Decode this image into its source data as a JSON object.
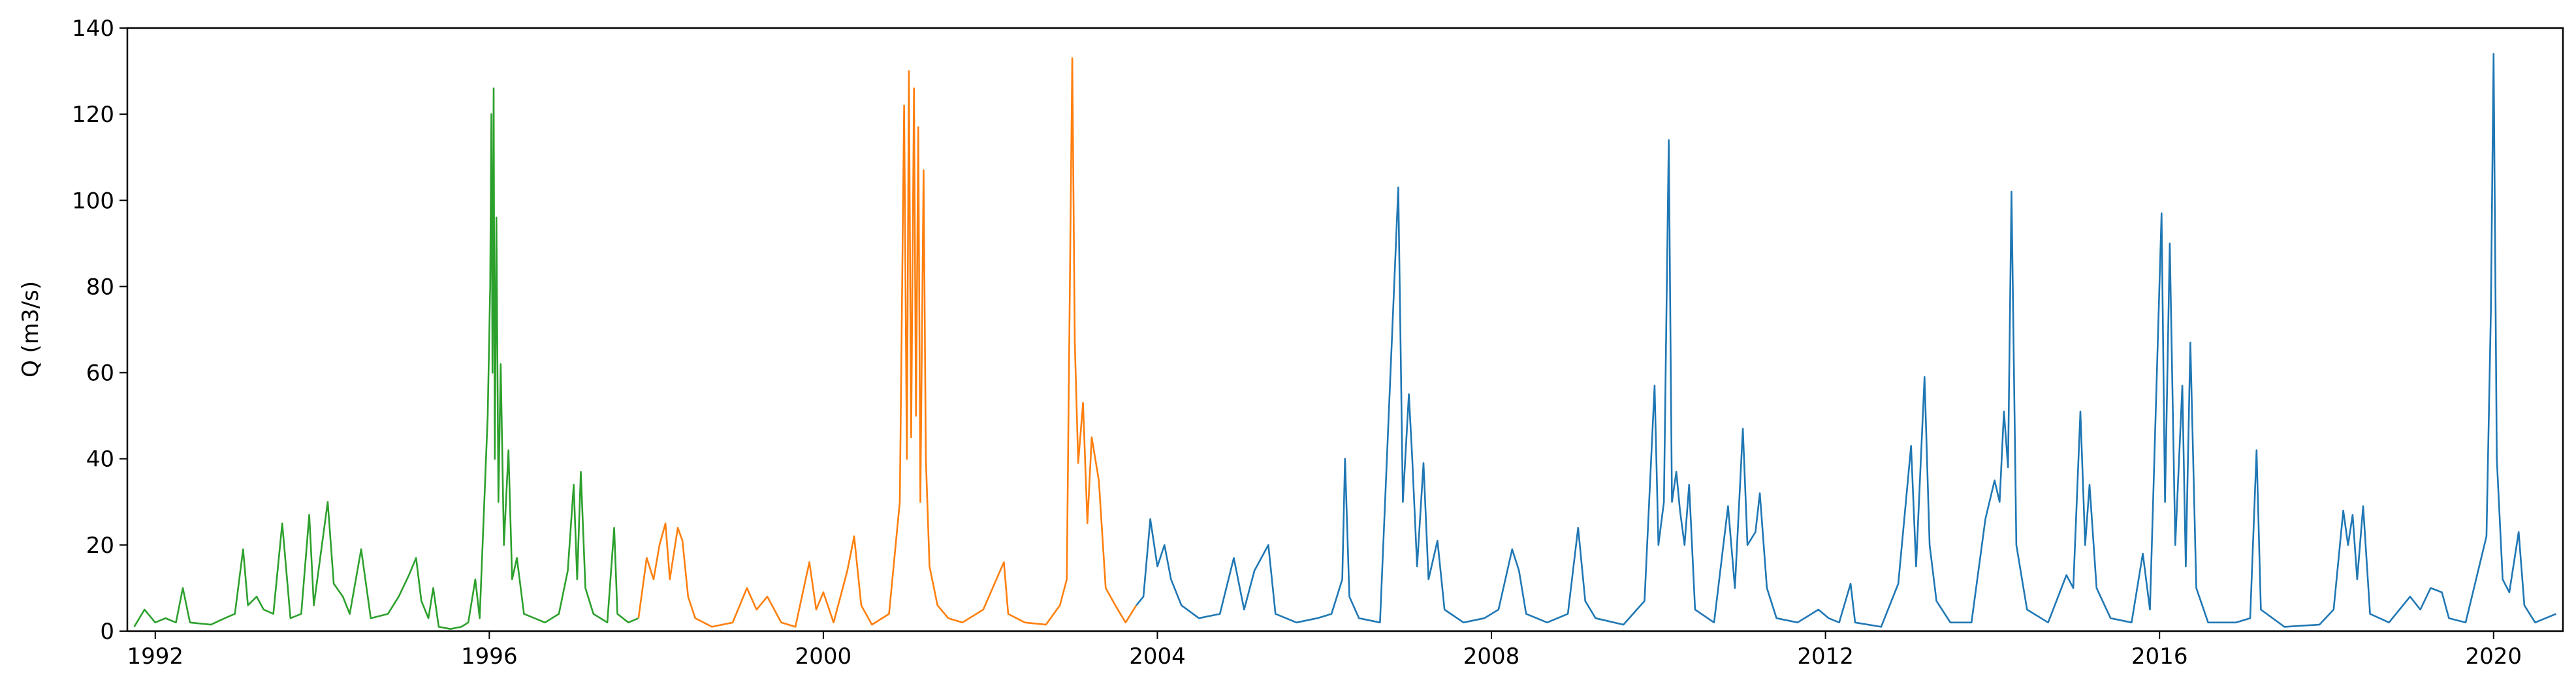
{
  "chart_data": {
    "type": "line",
    "title": "",
    "xlabel": "",
    "ylabel": "Q (m3/s)",
    "xlim": [
      "1991-09-01",
      "2020-10-31"
    ],
    "ylim": [
      0,
      140
    ],
    "x_ticks": [
      "1992",
      "1996",
      "2000",
      "2004",
      "2008",
      "2012",
      "2016",
      "2020"
    ],
    "y_ticks": [
      "0",
      "20",
      "40",
      "60",
      "80",
      "100",
      "120",
      "140"
    ],
    "grid": false,
    "series": [
      {
        "color": "#2ca02c",
        "points": [
          [
            "1991-10-01",
            1
          ],
          [
            "1991-11-15",
            5
          ],
          [
            "1992-01-01",
            2
          ],
          [
            "1992-02-15",
            3
          ],
          [
            "1992-04-01",
            2
          ],
          [
            "1992-05-01",
            10
          ],
          [
            "1992-06-01",
            2
          ],
          [
            "1992-09-01",
            1.5
          ],
          [
            "1992-11-01",
            3
          ],
          [
            "1992-12-15",
            4
          ],
          [
            "1993-01-20",
            19
          ],
          [
            "1993-02-10",
            6
          ],
          [
            "1993-03-20",
            8
          ],
          [
            "1993-04-20",
            5
          ],
          [
            "1993-06-01",
            4
          ],
          [
            "1993-07-10",
            25
          ],
          [
            "1993-08-15",
            3
          ],
          [
            "1993-10-01",
            4
          ],
          [
            "1993-11-05",
            27
          ],
          [
            "1993-11-25",
            6
          ],
          [
            "1994-01-25",
            30
          ],
          [
            "1994-02-20",
            11
          ],
          [
            "1994-04-01",
            8
          ],
          [
            "1994-05-01",
            4
          ],
          [
            "1994-06-20",
            19
          ],
          [
            "1994-08-01",
            3
          ],
          [
            "1994-10-15",
            4
          ],
          [
            "1994-12-01",
            8
          ],
          [
            "1995-01-15",
            13
          ],
          [
            "1995-02-15",
            17
          ],
          [
            "1995-03-10",
            7
          ],
          [
            "1995-04-10",
            3
          ],
          [
            "1995-05-01",
            10
          ],
          [
            "1995-05-25",
            1
          ],
          [
            "1995-07-15",
            0.5
          ],
          [
            "1995-09-01",
            1
          ],
          [
            "1995-10-01",
            2
          ],
          [
            "1995-11-01",
            12
          ],
          [
            "1995-11-20",
            3
          ],
          [
            "1995-12-25",
            50
          ],
          [
            "1996-01-05",
            80
          ],
          [
            "1996-01-10",
            120
          ],
          [
            "1996-01-15",
            60
          ],
          [
            "1996-01-20",
            126
          ],
          [
            "1996-01-25",
            40
          ],
          [
            "1996-02-01",
            96
          ],
          [
            "1996-02-10",
            30
          ],
          [
            "1996-02-20",
            62
          ],
          [
            "1996-03-05",
            20
          ],
          [
            "1996-03-25",
            42
          ],
          [
            "1996-04-10",
            12
          ],
          [
            "1996-05-01",
            17
          ],
          [
            "1996-06-01",
            4
          ],
          [
            "1996-09-01",
            2
          ],
          [
            "1996-11-01",
            4
          ],
          [
            "1996-12-10",
            14
          ],
          [
            "1997-01-05",
            34
          ],
          [
            "1997-01-20",
            12
          ],
          [
            "1997-02-05",
            37
          ],
          [
            "1997-02-25",
            10
          ],
          [
            "1997-04-01",
            4
          ],
          [
            "1997-06-01",
            2
          ],
          [
            "1997-07-01",
            24
          ],
          [
            "1997-07-15",
            4
          ],
          [
            "1997-09-01",
            2
          ],
          [
            "1997-10-15",
            3
          ]
        ]
      },
      {
        "color": "#ff7f0e",
        "points": [
          [
            "1997-10-15",
            3
          ],
          [
            "1997-11-20",
            17
          ],
          [
            "1997-12-20",
            12
          ],
          [
            "1998-01-15",
            20
          ],
          [
            "1998-02-10",
            25
          ],
          [
            "1998-03-01",
            12
          ],
          [
            "1998-04-05",
            24
          ],
          [
            "1998-04-25",
            21
          ],
          [
            "1998-05-20",
            8
          ],
          [
            "1998-06-20",
            3
          ],
          [
            "1998-09-01",
            1
          ],
          [
            "1998-12-01",
            2
          ],
          [
            "1999-02-01",
            10
          ],
          [
            "1999-03-15",
            5
          ],
          [
            "1999-05-01",
            8
          ],
          [
            "1999-07-01",
            2
          ],
          [
            "1999-09-01",
            1
          ],
          [
            "1999-11-01",
            16
          ],
          [
            "1999-12-01",
            5
          ],
          [
            "2000-01-01",
            9
          ],
          [
            "2000-02-15",
            2
          ],
          [
            "2000-04-15",
            14
          ],
          [
            "2000-05-15",
            22
          ],
          [
            "2000-06-15",
            6
          ],
          [
            "2000-08-01",
            1.5
          ],
          [
            "2000-10-15",
            4
          ],
          [
            "2000-12-01",
            30
          ],
          [
            "2000-12-20",
            122
          ],
          [
            "2001-01-01",
            40
          ],
          [
            "2001-01-10",
            130
          ],
          [
            "2001-01-20",
            45
          ],
          [
            "2001-02-01",
            126
          ],
          [
            "2001-02-10",
            50
          ],
          [
            "2001-02-20",
            117
          ],
          [
            "2001-03-01",
            30
          ],
          [
            "2001-03-15",
            107
          ],
          [
            "2001-03-25",
            40
          ],
          [
            "2001-04-10",
            15
          ],
          [
            "2001-05-15",
            6
          ],
          [
            "2001-07-01",
            3
          ],
          [
            "2001-09-01",
            2
          ],
          [
            "2001-12-01",
            5
          ],
          [
            "2002-03-01",
            16
          ],
          [
            "2002-03-20",
            4
          ],
          [
            "2002-06-01",
            2
          ],
          [
            "2002-09-01",
            1.5
          ],
          [
            "2002-11-01",
            6
          ],
          [
            "2002-12-01",
            12
          ],
          [
            "2002-12-25",
            133
          ],
          [
            "2003-01-05",
            67
          ],
          [
            "2003-01-20",
            39
          ],
          [
            "2003-02-10",
            53
          ],
          [
            "2003-03-01",
            25
          ],
          [
            "2003-03-20",
            45
          ],
          [
            "2003-04-20",
            35
          ],
          [
            "2003-05-20",
            10
          ],
          [
            "2003-07-01",
            6
          ],
          [
            "2003-08-15",
            2
          ],
          [
            "2003-10-01",
            6
          ]
        ]
      },
      {
        "color": "#1f77b4",
        "points": [
          [
            "2003-10-01",
            6
          ],
          [
            "2003-11-01",
            8
          ],
          [
            "2003-12-01",
            26
          ],
          [
            "2004-01-01",
            15
          ],
          [
            "2004-02-01",
            20
          ],
          [
            "2004-03-01",
            12
          ],
          [
            "2004-04-15",
            6
          ],
          [
            "2004-07-01",
            3
          ],
          [
            "2004-10-01",
            4
          ],
          [
            "2004-12-01",
            17
          ],
          [
            "2005-01-15",
            5
          ],
          [
            "2005-03-01",
            14
          ],
          [
            "2005-05-01",
            20
          ],
          [
            "2005-06-01",
            4
          ],
          [
            "2005-09-01",
            2
          ],
          [
            "2005-12-01",
            3
          ],
          [
            "2006-02-01",
            4
          ],
          [
            "2006-03-20",
            12
          ],
          [
            "2006-04-01",
            40
          ],
          [
            "2006-04-20",
            8
          ],
          [
            "2006-06-01",
            3
          ],
          [
            "2006-09-01",
            2
          ],
          [
            "2006-11-20",
            103
          ],
          [
            "2006-12-10",
            30
          ],
          [
            "2007-01-05",
            55
          ],
          [
            "2007-01-20",
            40
          ],
          [
            "2007-02-10",
            15
          ],
          [
            "2007-03-10",
            39
          ],
          [
            "2007-04-01",
            12
          ],
          [
            "2007-05-10",
            21
          ],
          [
            "2007-06-10",
            5
          ],
          [
            "2007-09-01",
            2
          ],
          [
            "2007-12-01",
            3
          ],
          [
            "2008-02-01",
            5
          ],
          [
            "2008-04-01",
            19
          ],
          [
            "2008-05-01",
            14
          ],
          [
            "2008-06-01",
            4
          ],
          [
            "2008-09-01",
            2
          ],
          [
            "2008-12-01",
            4
          ],
          [
            "2009-01-15",
            24
          ],
          [
            "2009-02-15",
            7
          ],
          [
            "2009-04-01",
            3
          ],
          [
            "2009-08-01",
            1.5
          ],
          [
            "2009-11-01",
            7
          ],
          [
            "2009-12-15",
            57
          ],
          [
            "2010-01-01",
            20
          ],
          [
            "2010-01-25",
            30
          ],
          [
            "2010-02-15",
            114
          ],
          [
            "2010-03-01",
            30
          ],
          [
            "2010-03-20",
            37
          ],
          [
            "2010-04-05",
            28
          ],
          [
            "2010-04-25",
            20
          ],
          [
            "2010-05-15",
            34
          ],
          [
            "2010-06-10",
            5
          ],
          [
            "2010-09-01",
            2
          ],
          [
            "2010-11-01",
            29
          ],
          [
            "2010-12-01",
            10
          ],
          [
            "2011-01-05",
            47
          ],
          [
            "2011-01-25",
            20
          ],
          [
            "2011-03-01",
            23
          ],
          [
            "2011-03-20",
            32
          ],
          [
            "2011-04-20",
            10
          ],
          [
            "2011-06-01",
            3
          ],
          [
            "2011-09-01",
            2
          ],
          [
            "2011-12-01",
            5
          ],
          [
            "2012-01-15",
            3
          ],
          [
            "2012-03-01",
            2
          ],
          [
            "2012-04-20",
            11
          ],
          [
            "2012-05-10",
            2
          ],
          [
            "2012-09-01",
            1
          ],
          [
            "2012-11-15",
            11
          ],
          [
            "2013-01-10",
            43
          ],
          [
            "2013-02-01",
            15
          ],
          [
            "2013-03-10",
            59
          ],
          [
            "2013-04-01",
            20
          ],
          [
            "2013-05-01",
            7
          ],
          [
            "2013-07-01",
            2
          ],
          [
            "2013-10-01",
            2
          ],
          [
            "2013-12-01",
            26
          ],
          [
            "2014-01-10",
            35
          ],
          [
            "2014-02-01",
            30
          ],
          [
            "2014-02-20",
            51
          ],
          [
            "2014-03-10",
            38
          ],
          [
            "2014-03-25",
            102
          ],
          [
            "2014-04-15",
            20
          ],
          [
            "2014-06-01",
            5
          ],
          [
            "2014-09-01",
            2
          ],
          [
            "2014-11-20",
            13
          ],
          [
            "2014-12-20",
            10
          ],
          [
            "2015-01-20",
            51
          ],
          [
            "2015-02-10",
            20
          ],
          [
            "2015-03-01",
            34
          ],
          [
            "2015-04-01",
            10
          ],
          [
            "2015-06-01",
            3
          ],
          [
            "2015-09-01",
            2
          ],
          [
            "2015-10-20",
            18
          ],
          [
            "2015-11-20",
            5
          ],
          [
            "2016-01-10",
            97
          ],
          [
            "2016-01-25",
            30
          ],
          [
            "2016-02-15",
            90
          ],
          [
            "2016-03-10",
            20
          ],
          [
            "2016-04-10",
            57
          ],
          [
            "2016-04-25",
            15
          ],
          [
            "2016-05-15",
            67
          ],
          [
            "2016-06-10",
            10
          ],
          [
            "2016-08-01",
            2
          ],
          [
            "2016-12-01",
            2
          ],
          [
            "2017-02-01",
            3
          ],
          [
            "2017-03-01",
            42
          ],
          [
            "2017-03-20",
            5
          ],
          [
            "2017-07-01",
            1
          ],
          [
            "2017-12-01",
            1.5
          ],
          [
            "2018-02-01",
            5
          ],
          [
            "2018-03-15",
            28
          ],
          [
            "2018-04-05",
            20
          ],
          [
            "2018-04-25",
            27
          ],
          [
            "2018-05-15",
            12
          ],
          [
            "2018-06-10",
            29
          ],
          [
            "2018-07-10",
            4
          ],
          [
            "2018-10-01",
            2
          ],
          [
            "2019-01-01",
            8
          ],
          [
            "2019-02-15",
            5
          ],
          [
            "2019-04-01",
            10
          ],
          [
            "2019-05-20",
            9
          ],
          [
            "2019-06-20",
            3
          ],
          [
            "2019-09-01",
            2
          ],
          [
            "2019-12-01",
            22
          ],
          [
            "2019-12-20",
            74
          ],
          [
            "2020-01-01",
            134
          ],
          [
            "2020-01-15",
            40
          ],
          [
            "2020-02-10",
            12
          ],
          [
            "2020-03-10",
            9
          ],
          [
            "2020-04-20",
            23
          ],
          [
            "2020-05-15",
            6
          ],
          [
            "2020-07-01",
            2
          ],
          [
            "2020-10-01",
            4
          ]
        ]
      }
    ]
  }
}
